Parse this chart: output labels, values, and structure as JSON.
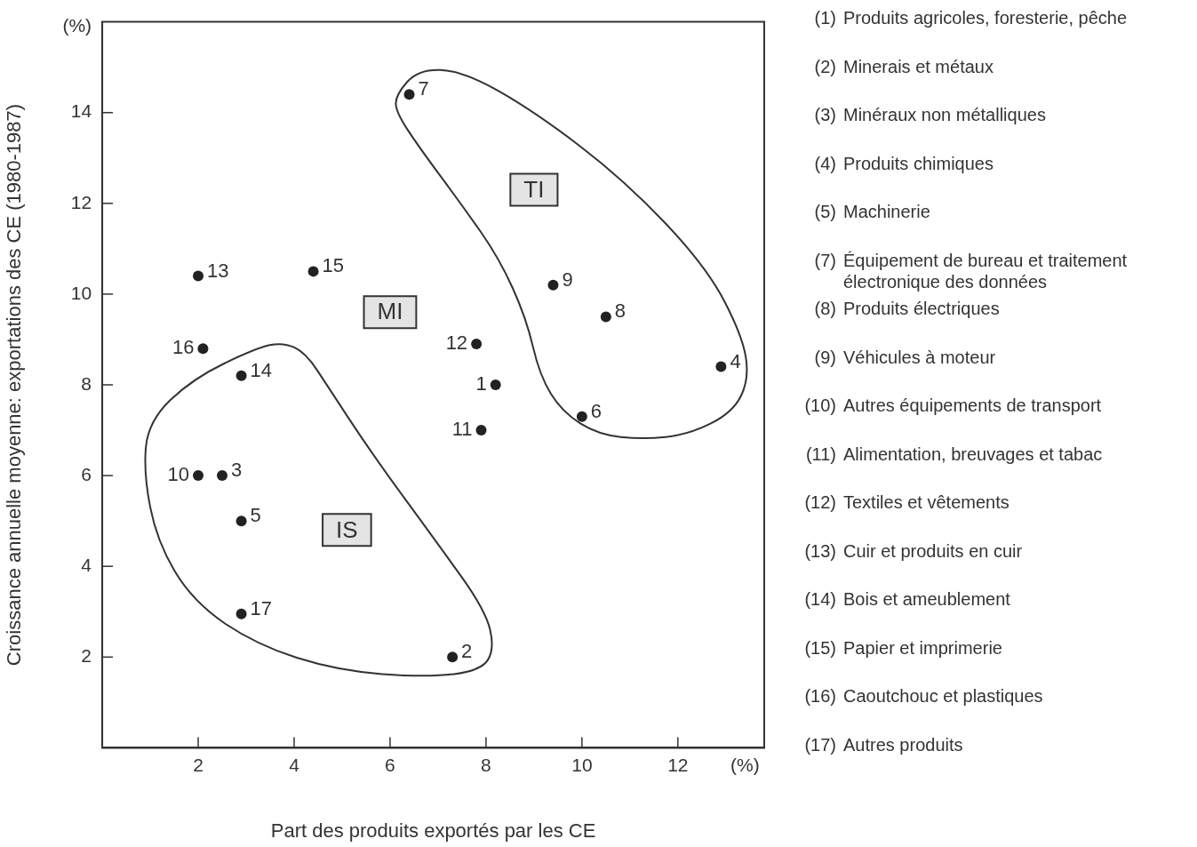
{
  "chart_data": {
    "type": "scatter",
    "xlabel": "Part des produits exportés par les CE",
    "ylabel": "Croissance annuelle moyenne: exportations des CE (1980-1987)",
    "xlim": [
      0,
      13.8
    ],
    "ylim": [
      0,
      16
    ],
    "xticks": [
      2,
      4,
      6,
      8,
      10,
      12,
      {
        "value": 13.4,
        "label": "(%)"
      }
    ],
    "yticks": [
      2,
      4,
      6,
      8,
      10,
      12,
      14,
      {
        "value": 15.9,
        "label": "(%)"
      }
    ],
    "grid": false,
    "legend": false,
    "marker": "circle",
    "series": [
      {
        "name": "1",
        "color": "#222222",
        "x": [
          8.2
        ],
        "values": [
          8.0
        ]
      },
      {
        "name": "2",
        "color": "#222222",
        "x": [
          7.3
        ],
        "values": [
          2.0
        ]
      },
      {
        "name": "3",
        "color": "#222222",
        "x": [
          2.5
        ],
        "values": [
          6.0
        ]
      },
      {
        "name": "4",
        "color": "#222222",
        "x": [
          12.9
        ],
        "values": [
          8.4
        ]
      },
      {
        "name": "5",
        "color": "#222222",
        "x": [
          2.9
        ],
        "values": [
          5.0
        ]
      },
      {
        "name": "6",
        "color": "#222222",
        "x": [
          10.0
        ],
        "values": [
          7.3
        ]
      },
      {
        "name": "7",
        "color": "#222222",
        "x": [
          6.4
        ],
        "values": [
          14.4
        ]
      },
      {
        "name": "8",
        "color": "#222222",
        "x": [
          10.5
        ],
        "values": [
          9.5
        ]
      },
      {
        "name": "9",
        "color": "#222222",
        "x": [
          9.4
        ],
        "values": [
          10.2
        ]
      },
      {
        "name": "10",
        "color": "#222222",
        "x": [
          2.0
        ],
        "values": [
          6.0
        ]
      },
      {
        "name": "11",
        "color": "#222222",
        "x": [
          7.9
        ],
        "values": [
          7.0
        ]
      },
      {
        "name": "12",
        "color": "#222222",
        "x": [
          7.8
        ],
        "values": [
          8.9
        ]
      },
      {
        "name": "13",
        "color": "#222222",
        "x": [
          2.0
        ],
        "values": [
          10.4
        ]
      },
      {
        "name": "14",
        "color": "#222222",
        "x": [
          2.9
        ],
        "values": [
          8.2
        ]
      },
      {
        "name": "15",
        "color": "#222222",
        "x": [
          4.4
        ],
        "values": [
          10.5
        ]
      },
      {
        "name": "16",
        "color": "#222222",
        "x": [
          2.1
        ],
        "values": [
          8.8
        ]
      },
      {
        "name": "17",
        "color": "#222222",
        "x": [
          2.9
        ],
        "values": [
          2.95
        ]
      }
    ],
    "annotations": [
      "TI",
      "MI",
      "IS",
      "(1) Produits agricoles, foresterie, pêche",
      "(2) Minerais et métaux",
      "(3) Minéraux non métalliques",
      "(4) Produits chimiques",
      "(5) Machinerie",
      "(7) Équipement de bureau et traitement électronique des données",
      "(8) Produits électriques",
      "(9) Véhicules à moteur",
      "(10) Autres équipements de transport",
      "(11) Alimentation, breuvages et tabac",
      "(12) Textiles et vêtements",
      "(13) Cuir et produits en cuir",
      "(14) Bois et ameublement",
      "(15) Papier et imprimerie",
      "(16) Caoutchouc et plastiques",
      "(17) Autres produits"
    ]
  }
}
